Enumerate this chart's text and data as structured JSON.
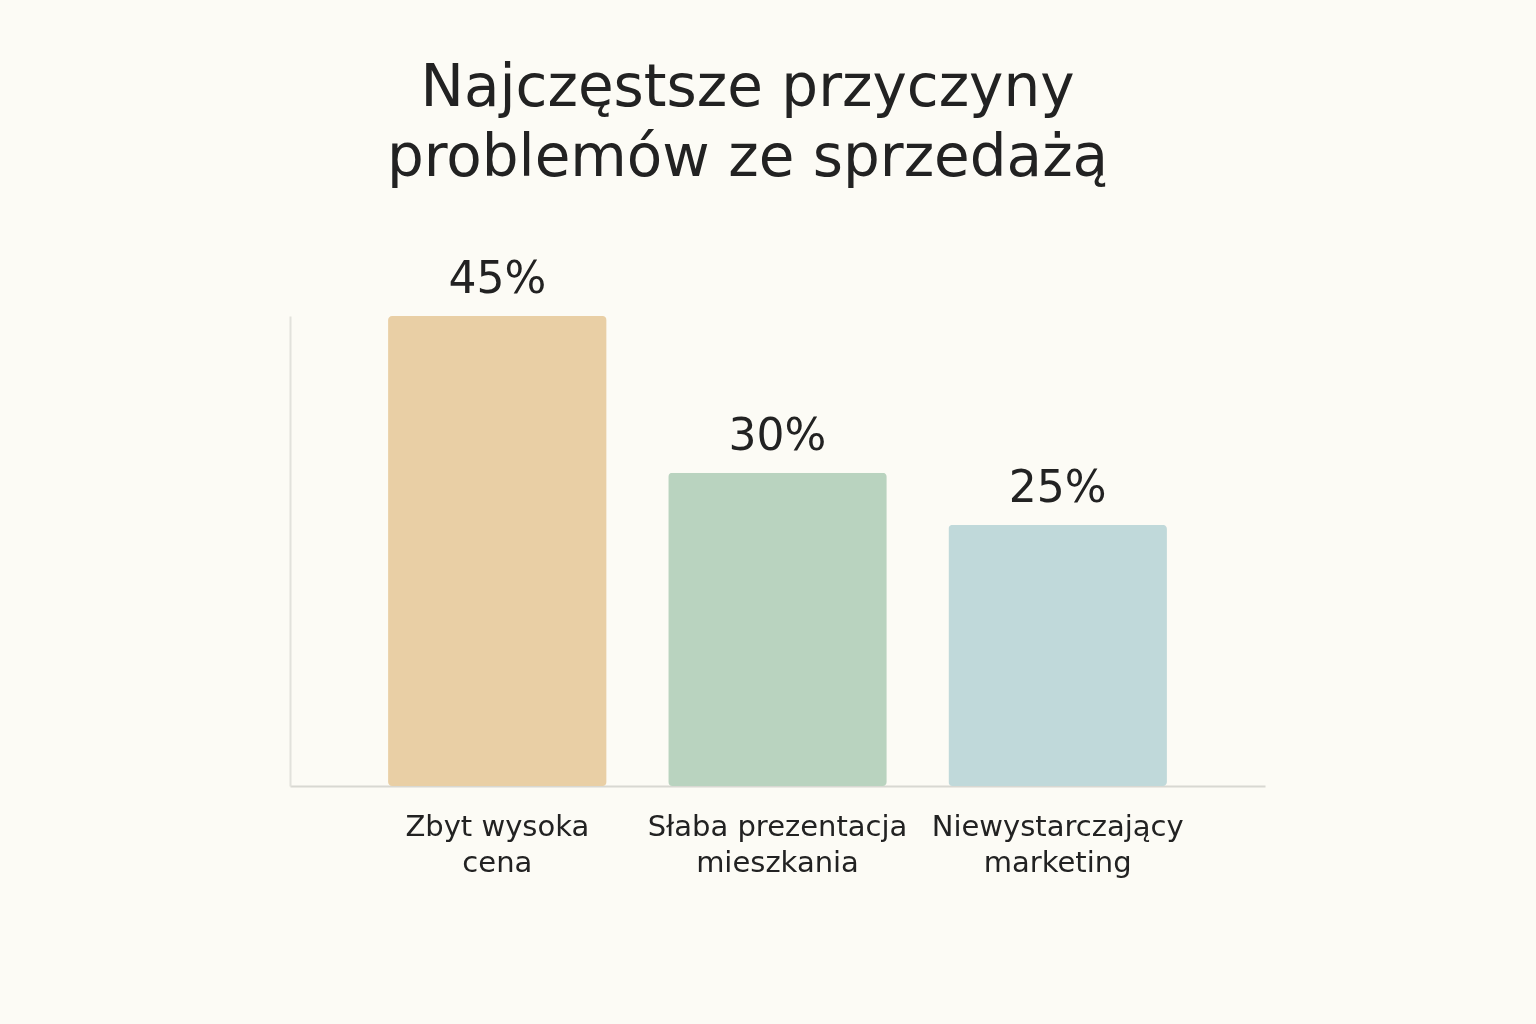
{
  "chart_data": {
    "type": "bar",
    "title": [
      "Najczęstsze przyczyny",
      "problemów ze sprzedażą"
    ],
    "categories": [
      "Zbyt wysoka cena",
      "Słaba prezentacja mieszkania",
      "Niewystarczający marketing"
    ],
    "values": [
      45,
      30,
      25
    ],
    "colors": [
      "#e9cfa5",
      "#b9d3bf",
      "#c0d9da"
    ],
    "value_labels": [
      "45%",
      "30%",
      "25%"
    ],
    "grid": false,
    "tick_labels": "x"
  }
}
